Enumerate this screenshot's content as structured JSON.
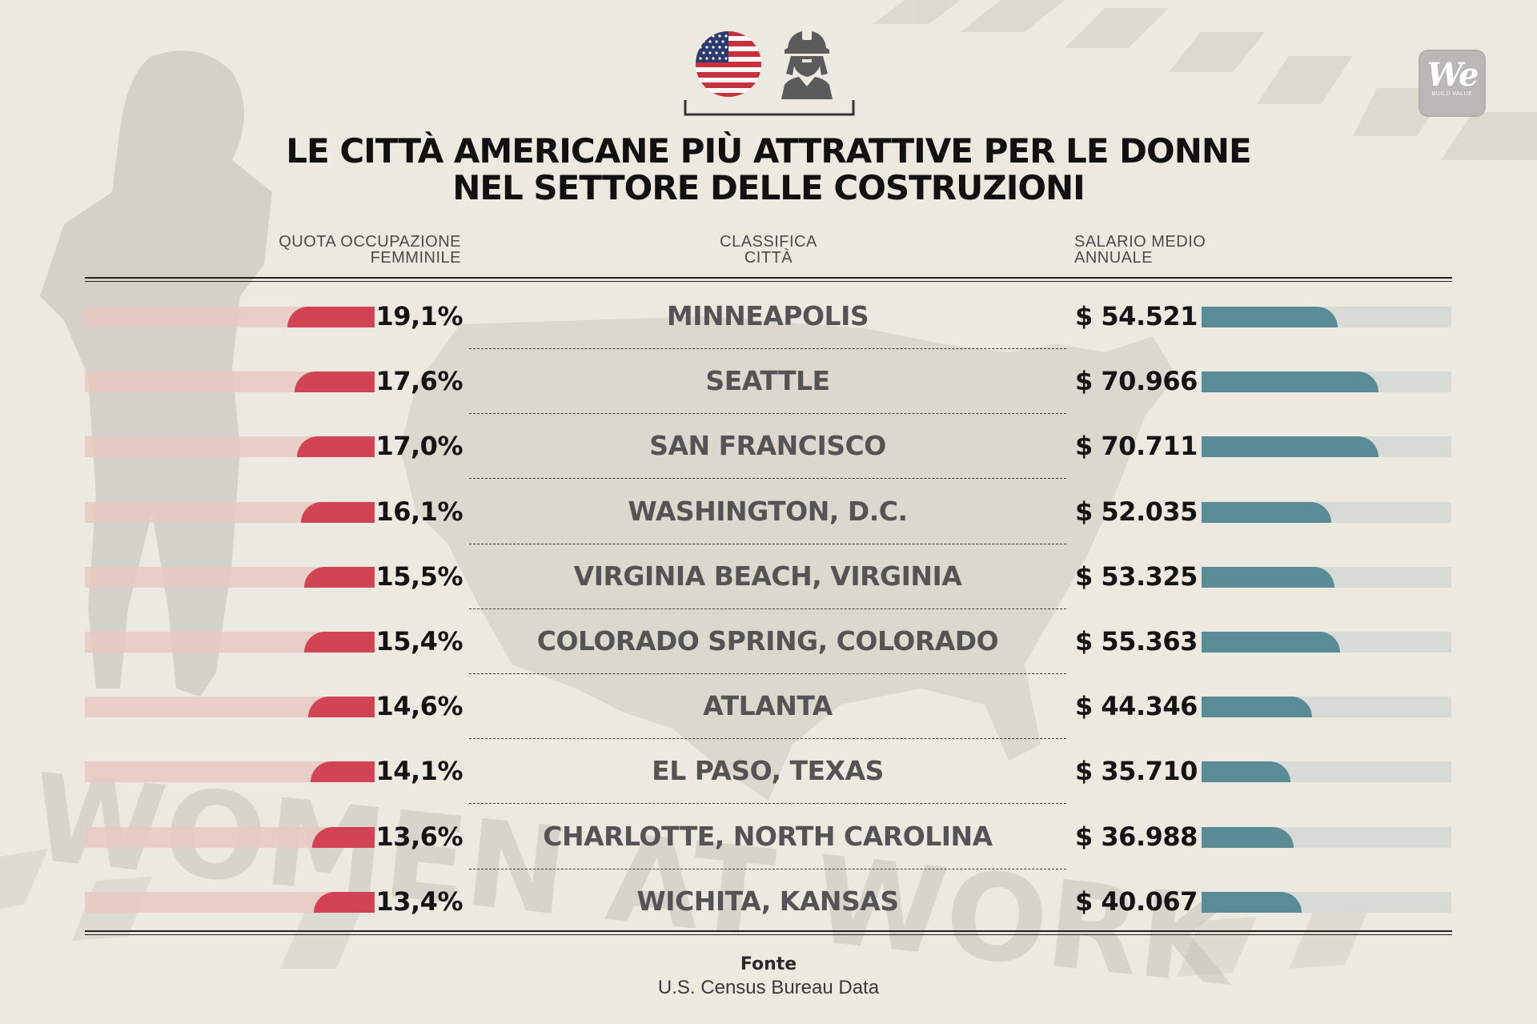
{
  "title_line1": "LE CITTÀ AMERICANE PIÙ ATTRATTIVE PER LE DONNE",
  "title_line2": "NEL SETTORE DELLE COSTRUZIONI",
  "headers": {
    "share_line1": "QUOTA OCCUPAZIONE",
    "share_line2": "FEMMINILE",
    "rank_line1": "CLASSIFICA",
    "rank_line2": "CITTÀ",
    "salary_line1": "SALARIO MEDIO",
    "salary_line2": "ANNUALE"
  },
  "background_text": "WOMEN AT WORK",
  "logo": {
    "mark": "We",
    "tagline": "BUILD VALUE"
  },
  "icons": [
    "us-flag-icon",
    "female-construction-worker-icon"
  ],
  "colors": {
    "background": "#ece9e0",
    "share_bar": "#d24353",
    "share_track": "#e8c9c2",
    "salary_bar": "#5a8c97",
    "salary_track": "#d6d9d4",
    "city_text": "#545454"
  },
  "source": {
    "label": "Fonte",
    "text": "U.S. Census Bureau Data"
  },
  "chart_data": {
    "type": "table",
    "title": "LE CITTÀ AMERICANE PIÙ ATTRATTIVE PER LE DONNE NEL SETTORE DELLE COSTRUZIONI",
    "columns": [
      "QUOTA OCCUPAZIONE FEMMINILE",
      "CLASSIFICA CITTÀ",
      "SALARIO MEDIO ANNUALE"
    ],
    "rows": [
      {
        "city": "MINNEAPOLIS",
        "share": 19.1,
        "share_label": "19,1%",
        "salary": 54521,
        "salary_label": "$ 54.521"
      },
      {
        "city": "SEATTLE",
        "share": 17.6,
        "share_label": "17,6%",
        "salary": 70966,
        "salary_label": "$ 70.966"
      },
      {
        "city": "SAN FRANCISCO",
        "share": 17.0,
        "share_label": "17,0%",
        "salary": 70711,
        "salary_label": "$ 70.711"
      },
      {
        "city": "WASHINGTON, D.C.",
        "share": 16.1,
        "share_label": "16,1%",
        "salary": 52035,
        "salary_label": "$ 52.035"
      },
      {
        "city": "VIRGINIA BEACH, VIRGINIA",
        "share": 15.5,
        "share_label": "15,5%",
        "salary": 53325,
        "salary_label": "$ 53.325"
      },
      {
        "city": "COLORADO SPRING, COLORADO",
        "share": 15.4,
        "share_label": "15,4%",
        "salary": 55363,
        "salary_label": "$ 55.363"
      },
      {
        "city": "ATLANTA",
        "share": 14.6,
        "share_label": "14,6%",
        "salary": 44346,
        "salary_label": "$ 44.346"
      },
      {
        "city": "EL PASO, TEXAS",
        "share": 14.1,
        "share_label": "14,1%",
        "salary": 35710,
        "salary_label": "$ 35.710"
      },
      {
        "city": "CHARLOTTE, NORTH CAROLINA",
        "share": 13.6,
        "share_label": "13,6%",
        "salary": 36988,
        "salary_label": "$ 36.988"
      },
      {
        "city": "WICHITA, KANSAS",
        "share": 13.4,
        "share_label": "13,4%",
        "salary": 40067,
        "salary_label": "$ 40.067"
      }
    ]
  }
}
